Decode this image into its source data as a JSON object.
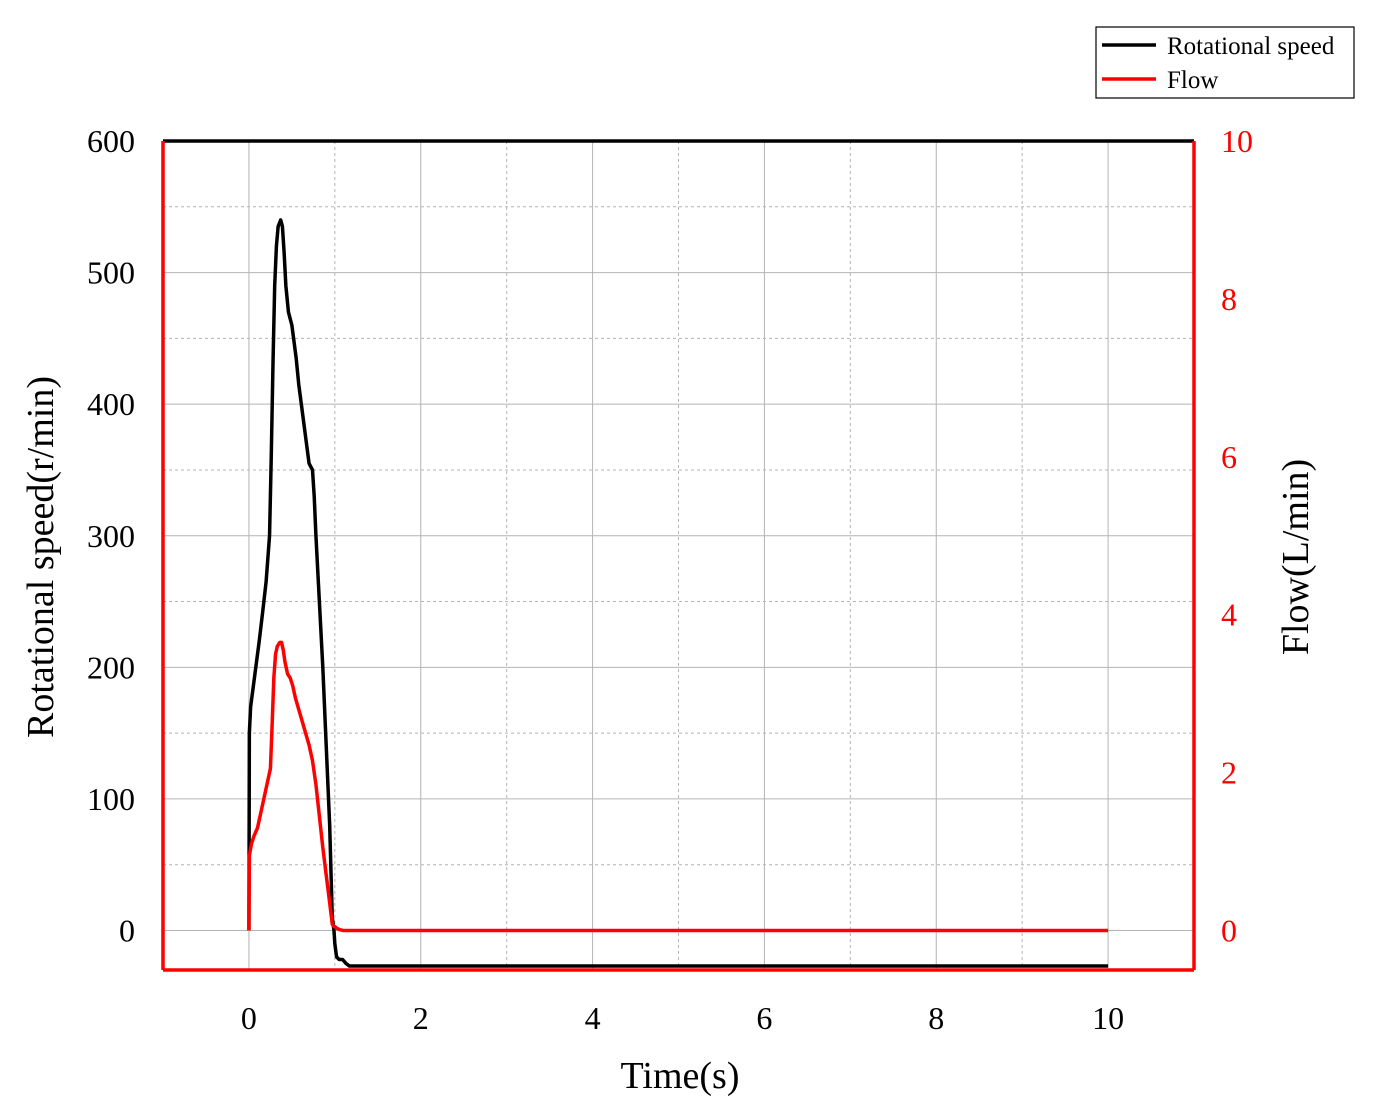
{
  "colors": {
    "speed": "#000000",
    "flow": "#ff0000",
    "grid": "#b4b4b4",
    "frame_top": "#000000",
    "frame_sides": "#ff0000"
  },
  "chart_data": {
    "type": "line",
    "xlabel": "Time(s)",
    "ylabel_left": "Rotational speed(r/min)",
    "ylabel_right": "Flow(L/min)",
    "x_ticks": [
      0,
      2,
      4,
      6,
      8,
      10
    ],
    "y_left_ticks": [
      0,
      100,
      200,
      300,
      400,
      500,
      600
    ],
    "y_right_ticks": [
      0,
      2,
      4,
      6,
      8,
      10
    ],
    "xlim": [
      -1,
      11
    ],
    "ylim_left": [
      -30,
      600
    ],
    "ylim_right": [
      -0.5,
      10
    ],
    "grid": true,
    "legend_position": "top-right",
    "series": [
      {
        "name": "Rotational speed",
        "axis": "left",
        "color": "#000000",
        "x": [
          0,
          0.005,
          0.02,
          0.05,
          0.08,
          0.12,
          0.16,
          0.2,
          0.24,
          0.26,
          0.28,
          0.3,
          0.32,
          0.34,
          0.37,
          0.39,
          0.41,
          0.43,
          0.46,
          0.48,
          0.5,
          0.52,
          0.55,
          0.58,
          0.62,
          0.66,
          0.7,
          0.74,
          0.76,
          0.78,
          0.82,
          0.86,
          0.9,
          0.94,
          0.97,
          0.99,
          1.0,
          1.02,
          1.05,
          1.09,
          1.13,
          1.17,
          2,
          4,
          6,
          8,
          10
        ],
        "y": [
          0,
          150,
          170,
          185,
          200,
          220,
          242,
          265,
          300,
          360,
          430,
          490,
          520,
          535,
          540,
          535,
          515,
          490,
          470,
          465,
          460,
          450,
          435,
          415,
          395,
          375,
          355,
          350,
          330,
          300,
          250,
          200,
          140,
          80,
          10,
          0,
          -10,
          -20,
          -22,
          -22,
          -25,
          -27,
          -27,
          -27,
          -27,
          -27,
          -27
        ]
      },
      {
        "name": "Flow",
        "axis": "right",
        "color": "#ff0000",
        "x": [
          0,
          0.005,
          0.03,
          0.06,
          0.1,
          0.14,
          0.18,
          0.22,
          0.25,
          0.27,
          0.29,
          0.31,
          0.33,
          0.36,
          0.38,
          0.4,
          0.42,
          0.45,
          0.48,
          0.51,
          0.54,
          0.58,
          0.62,
          0.66,
          0.7,
          0.74,
          0.78,
          0.82,
          0.86,
          0.9,
          0.94,
          0.97,
          0.99,
          1.0,
          1.02,
          1.06,
          1.1,
          1.14,
          2,
          4,
          6,
          8,
          10
        ],
        "y": [
          0,
          0.95,
          1.1,
          1.2,
          1.3,
          1.5,
          1.7,
          1.9,
          2.05,
          2.6,
          3.2,
          3.5,
          3.6,
          3.65,
          3.65,
          3.55,
          3.4,
          3.25,
          3.2,
          3.1,
          2.95,
          2.8,
          2.65,
          2.5,
          2.35,
          2.15,
          1.85,
          1.45,
          1.05,
          0.7,
          0.35,
          0.08,
          0.05,
          0.05,
          0.03,
          0.01,
          0,
          0,
          0,
          0,
          0,
          0,
          0
        ]
      }
    ]
  }
}
